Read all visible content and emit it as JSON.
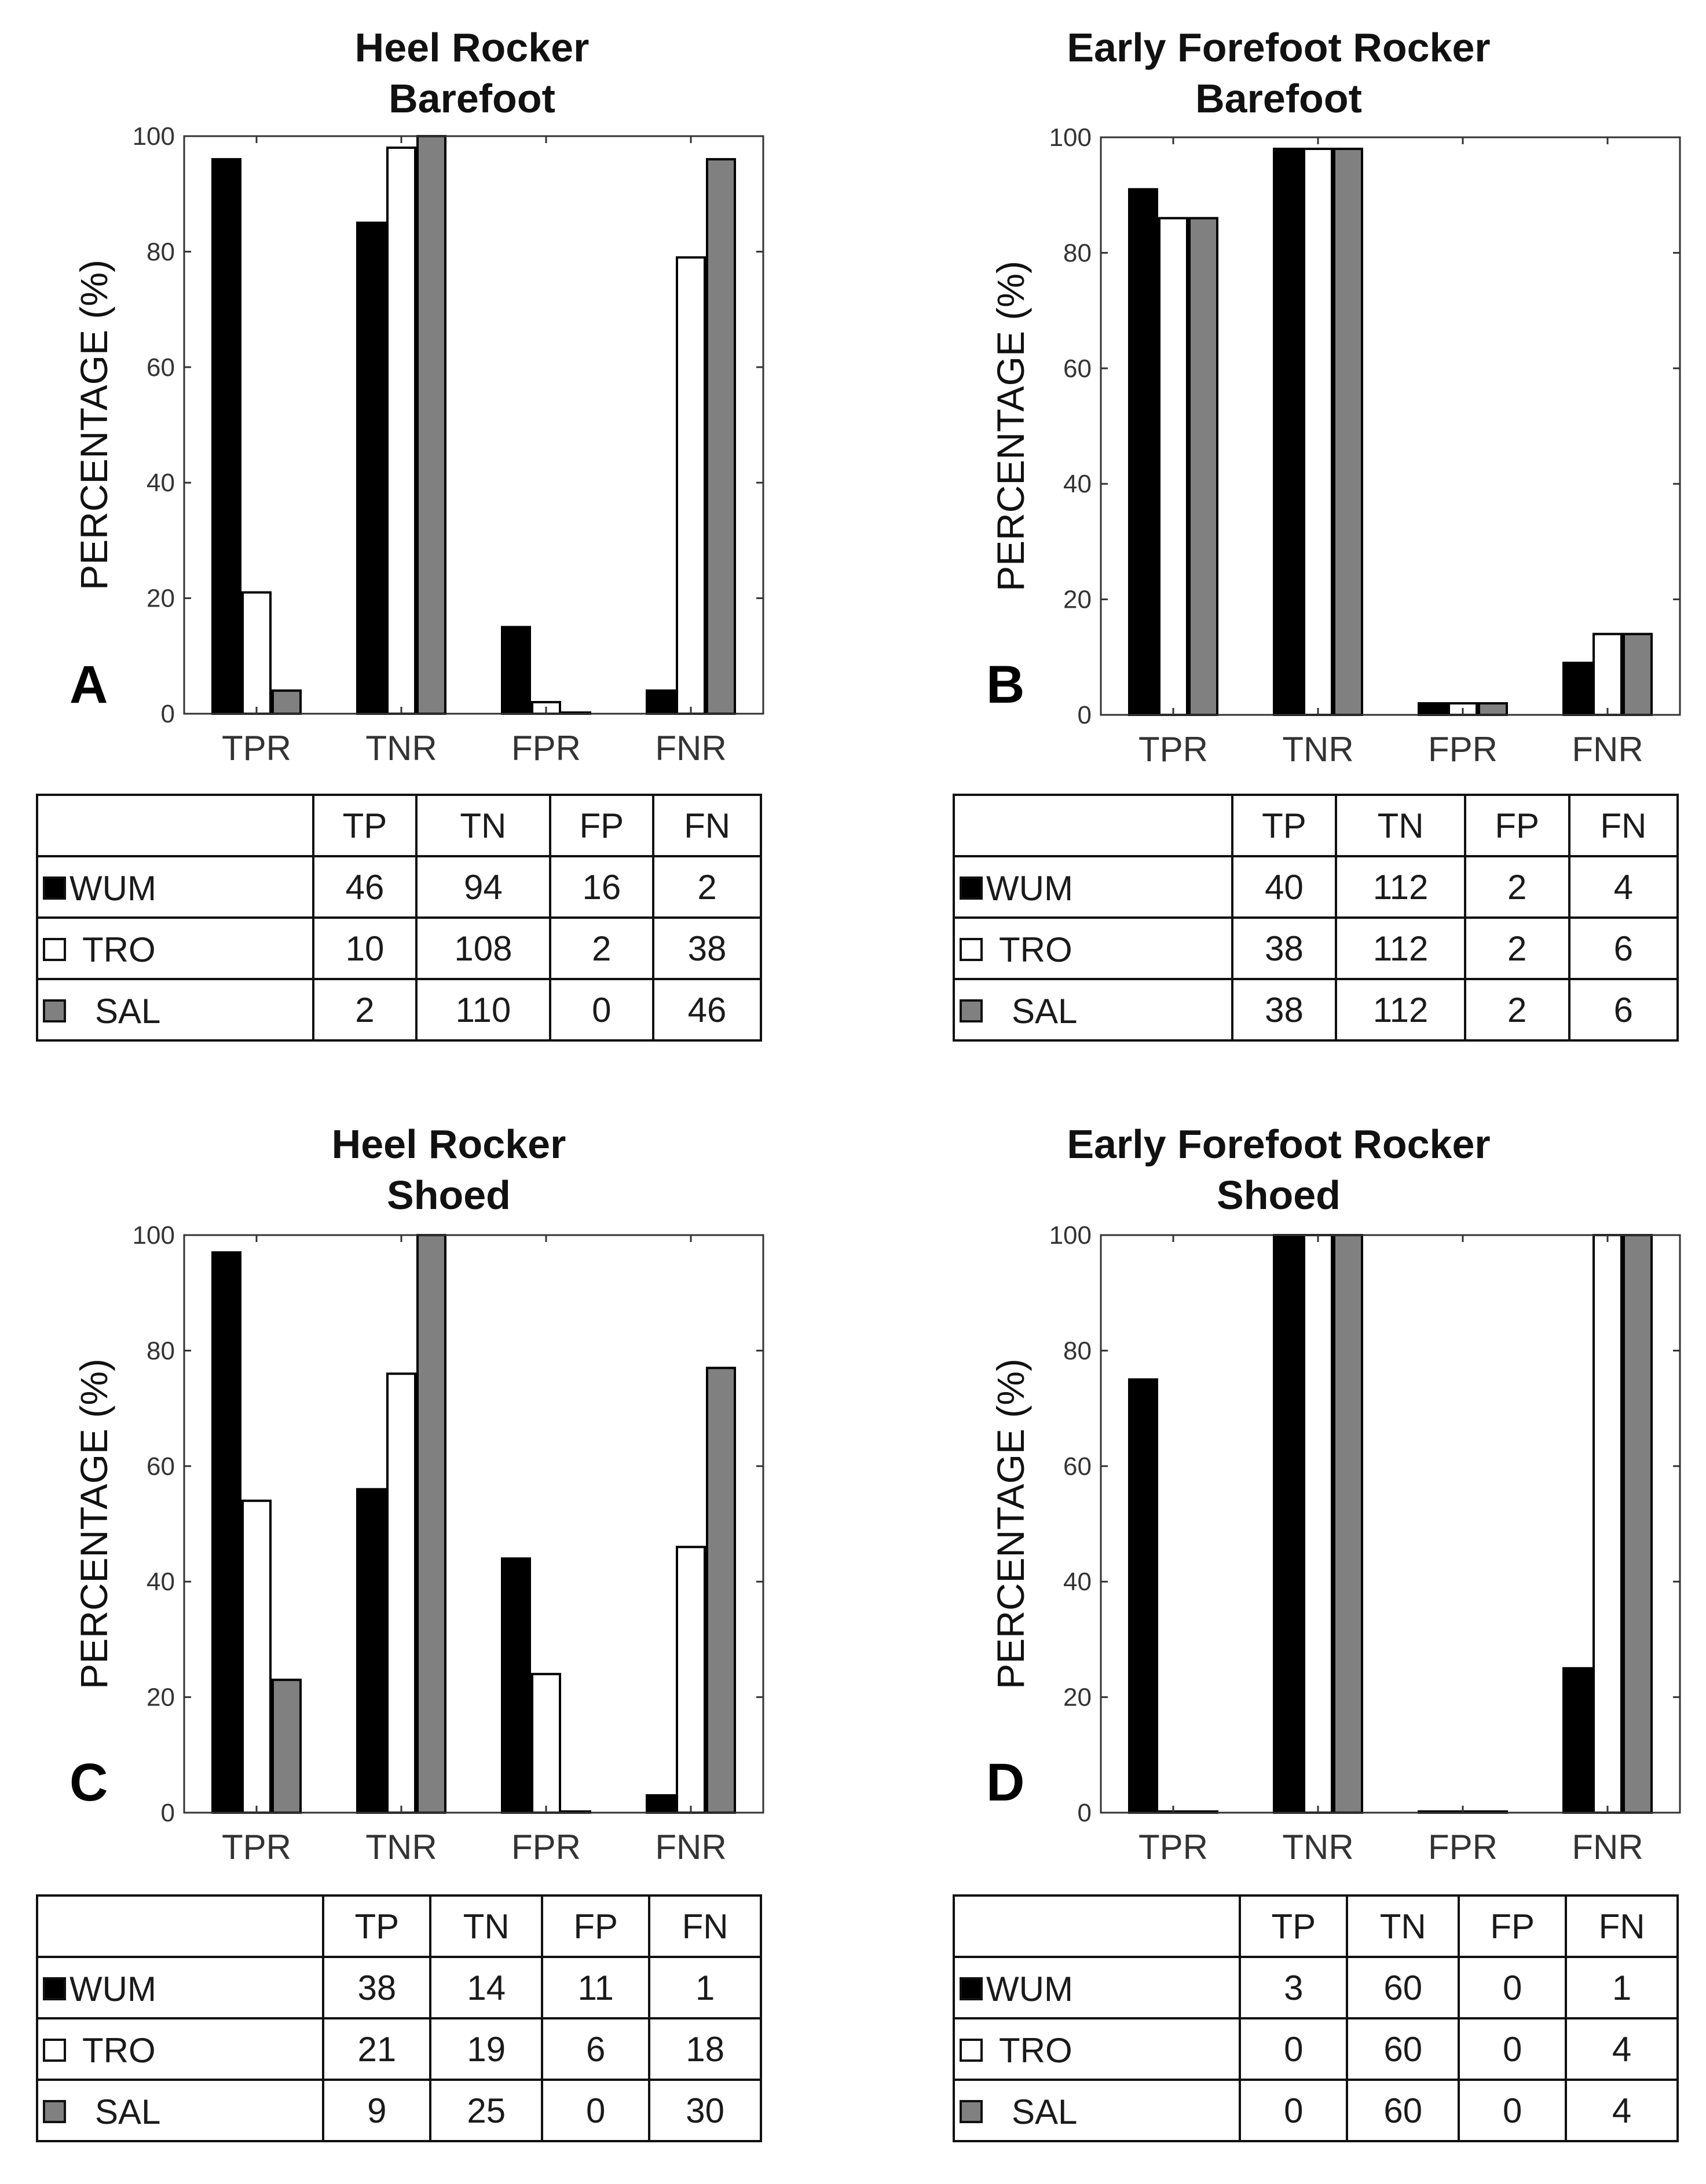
{
  "colors": {
    "WUM": "#000000",
    "TRO": "#ffffff",
    "SAL": "#808080"
  },
  "chart_data": [
    {
      "type": "bar",
      "panel_label": "A",
      "title_lines": [
        "Heel Rocker",
        "Barefoot"
      ],
      "ylabel": "PERCENTAGE (%)",
      "ylim": [
        0,
        100
      ],
      "yticks": [
        "0",
        "20",
        "40",
        "60",
        "80",
        "100"
      ],
      "categories": [
        "TPR",
        "TNR",
        "FPR",
        "FNR"
      ],
      "series": [
        {
          "name": "WUM",
          "values": [
            96,
            85,
            15,
            4
          ]
        },
        {
          "name": "TRO",
          "values": [
            21,
            98,
            2,
            79
          ]
        },
        {
          "name": "SAL",
          "values": [
            4,
            100,
            0,
            96
          ]
        }
      ],
      "table": {
        "columns": [
          "",
          "TP",
          "TN",
          "FP",
          "FN"
        ],
        "rows": [
          {
            "name": "WUM",
            "values": [
              "46",
              "94",
              "16",
              "2"
            ]
          },
          {
            "name": "TRO",
            "values": [
              "10",
              "108",
              "2",
              "38"
            ]
          },
          {
            "name": "SAL",
            "values": [
              "2",
              "110",
              "0",
              "46"
            ]
          }
        ]
      }
    },
    {
      "type": "bar",
      "panel_label": "B",
      "title_lines": [
        "Early Forefoot Rocker",
        "Barefoot"
      ],
      "ylabel": "PERCENTAGE (%)",
      "ylim": [
        0,
        100
      ],
      "yticks": [
        "0",
        "20",
        "40",
        "60",
        "80",
        "100"
      ],
      "categories": [
        "TPR",
        "TNR",
        "FPR",
        "FNR"
      ],
      "series": [
        {
          "name": "WUM",
          "values": [
            91,
            98,
            2,
            9
          ]
        },
        {
          "name": "TRO",
          "values": [
            86,
            98,
            2,
            14
          ]
        },
        {
          "name": "SAL",
          "values": [
            86,
            98,
            2,
            14
          ]
        }
      ],
      "table": {
        "columns": [
          "",
          "TP",
          "TN",
          "FP",
          "FN"
        ],
        "rows": [
          {
            "name": "WUM",
            "values": [
              "40",
              "112",
              "2",
              "4"
            ]
          },
          {
            "name": "TRO",
            "values": [
              "38",
              "112",
              "2",
              "6"
            ]
          },
          {
            "name": "SAL",
            "values": [
              "38",
              "112",
              "2",
              "6"
            ]
          }
        ]
      }
    },
    {
      "type": "bar",
      "panel_label": "C",
      "title_lines": [
        "Heel Rocker",
        "Shoed"
      ],
      "ylabel": "PERCENTAGE (%)",
      "ylim": [
        0,
        100
      ],
      "yticks": [
        "0",
        "20",
        "40",
        "60",
        "80",
        "100"
      ],
      "categories": [
        "TPR",
        "TNR",
        "FPR",
        "FNR"
      ],
      "series": [
        {
          "name": "WUM",
          "values": [
            97,
            56,
            44,
            3
          ]
        },
        {
          "name": "TRO",
          "values": [
            54,
            76,
            24,
            46
          ]
        },
        {
          "name": "SAL",
          "values": [
            23,
            100,
            0,
            77
          ]
        }
      ],
      "table": {
        "columns": [
          "",
          "TP",
          "TN",
          "FP",
          "FN"
        ],
        "rows": [
          {
            "name": "WUM",
            "values": [
              "38",
              "14",
              "11",
              "1"
            ]
          },
          {
            "name": "TRO",
            "values": [
              "21",
              "19",
              "6",
              "18"
            ]
          },
          {
            "name": "SAL",
            "values": [
              "9",
              "25",
              "0",
              "30"
            ]
          }
        ]
      }
    },
    {
      "type": "bar",
      "panel_label": "D",
      "title_lines": [
        "Early Forefoot Rocker",
        "Shoed"
      ],
      "ylabel": "PERCENTAGE (%)",
      "ylim": [
        0,
        100
      ],
      "yticks": [
        "0",
        "20",
        "40",
        "60",
        "80",
        "100"
      ],
      "categories": [
        "TPR",
        "TNR",
        "FPR",
        "FNR"
      ],
      "series": [
        {
          "name": "WUM",
          "values": [
            75,
            100,
            0,
            25
          ]
        },
        {
          "name": "TRO",
          "values": [
            0,
            100,
            0,
            100
          ]
        },
        {
          "name": "SAL",
          "values": [
            0,
            100,
            0,
            100
          ]
        }
      ],
      "table": {
        "columns": [
          "",
          "TP",
          "TN",
          "FP",
          "FN"
        ],
        "rows": [
          {
            "name": "WUM",
            "values": [
              "3",
              "60",
              "0",
              "1"
            ]
          },
          {
            "name": "TRO",
            "values": [
              "0",
              "60",
              "0",
              "4"
            ]
          },
          {
            "name": "SAL",
            "values": [
              "0",
              "60",
              "0",
              "4"
            ]
          }
        ]
      }
    }
  ]
}
